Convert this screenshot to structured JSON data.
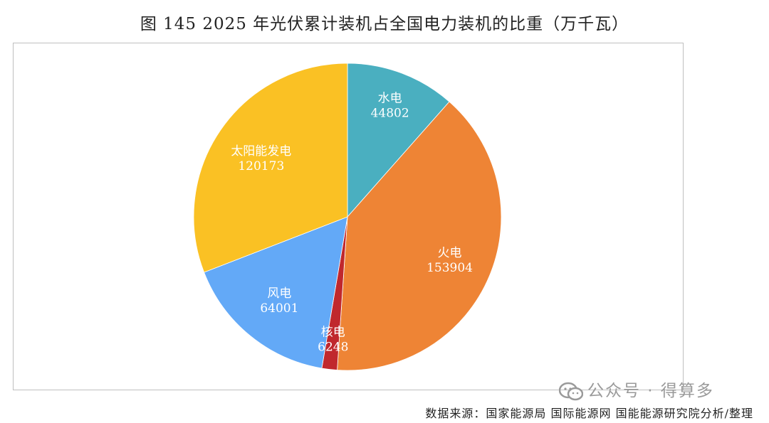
{
  "chart_data": {
    "type": "pie",
    "title": "图 145 2025 年光伏累计装机占全国电力装机的比重（万千瓦）",
    "slices": [
      {
        "label": "水电",
        "value": 44802,
        "color": "#4AAFC0"
      },
      {
        "label": "火电",
        "value": 153904,
        "color": "#EE8435"
      },
      {
        "label": "核电",
        "value": 6248,
        "color": "#C0282D"
      },
      {
        "label": "风电",
        "value": 64001,
        "color": "#63A9F7"
      },
      {
        "label": "太阳能发电",
        "value": 120173,
        "color": "#FAC124"
      }
    ],
    "start_angle_deg": 0,
    "direction": "clockwise"
  },
  "watermark": {
    "text": "公众号 · 得算多",
    "icon": "wechat-icon"
  },
  "source": "数据来源：国家能源局 国际能源网 国能能源研究院分析/整理"
}
